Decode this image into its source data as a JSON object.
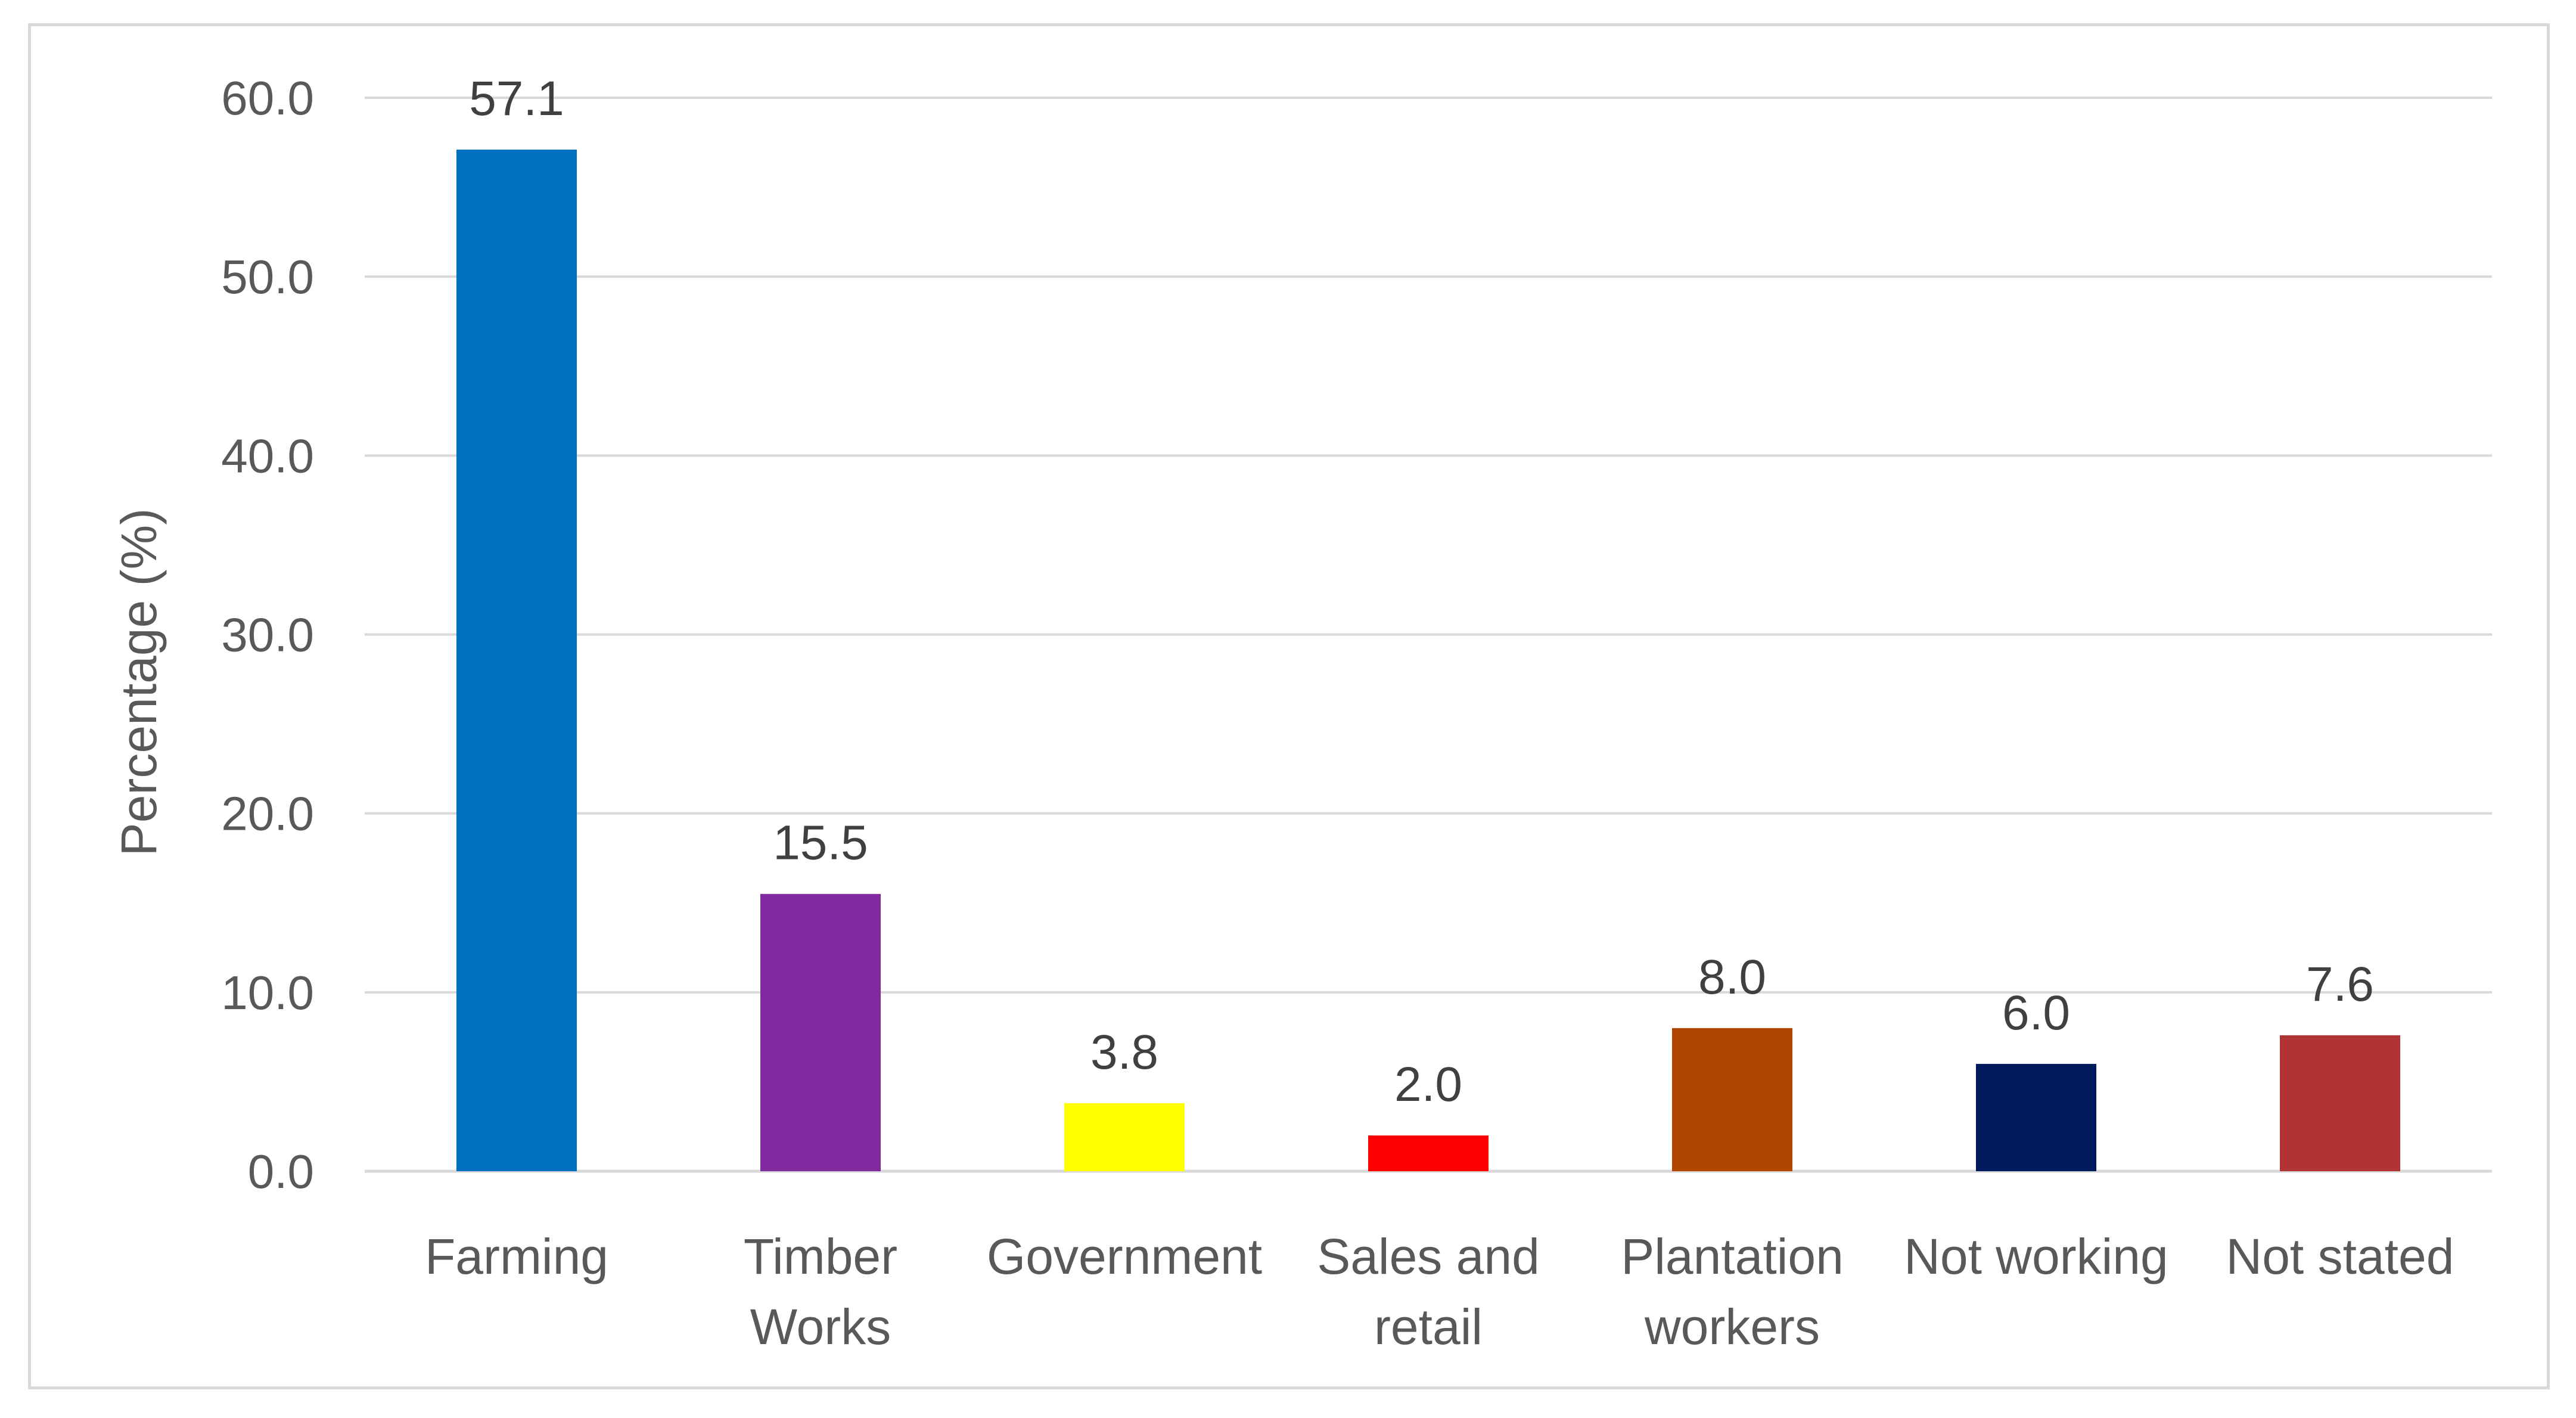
{
  "chart_data": {
    "type": "bar",
    "title": "",
    "xlabel": "",
    "ylabel": "Percentage (%)",
    "ylim": [
      0,
      60
    ],
    "yticks": [
      "0.0",
      "10.0",
      "20.0",
      "30.0",
      "40.0",
      "50.0",
      "60.0"
    ],
    "grid": true,
    "legend": "none",
    "categories": [
      [
        "Farming"
      ],
      [
        "Timber",
        "Works"
      ],
      [
        "Government"
      ],
      [
        "Sales and",
        "retail"
      ],
      [
        "Plantation",
        "workers"
      ],
      [
        "Not working"
      ],
      [
        "Not stated"
      ]
    ],
    "values": [
      57.1,
      15.5,
      3.8,
      2.0,
      8.0,
      6.0,
      7.6
    ],
    "value_labels": [
      "57.1",
      "15.5",
      "3.8",
      "2.0",
      "8.0",
      "6.0",
      "7.6"
    ],
    "colors": [
      "#0070c0",
      "#7f2a9e",
      "#ffff00",
      "#ff0000",
      "#b04500",
      "#001a5e",
      "#b03434"
    ],
    "gridline_color": "#d9d9d9"
  }
}
